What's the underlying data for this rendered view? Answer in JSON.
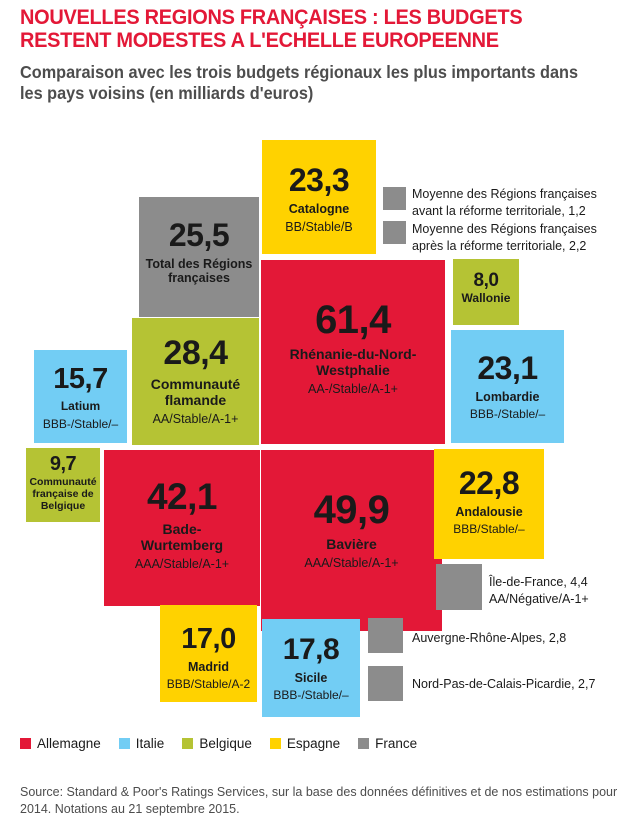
{
  "chart_data": {
    "type": "treemap",
    "title": "NOUVELLES REGIONS FRANÇAISES : LES BUDGETS RESTENT MODESTES A L'ECHELLE EUROPEENNE",
    "subtitle": "Comparaison avec les trois budgets régionaux les plus importants dans les pays voisins (en milliards d'euros)",
    "colors": {
      "Allemagne": "#e31837",
      "Italie": "#72cdf4",
      "Belgique": "#b5c334",
      "Espagne": "#ffd200",
      "France": "#8c8c8c"
    },
    "legend": [
      {
        "label": "Allemagne",
        "country": "Allemagne"
      },
      {
        "label": "Italie",
        "country": "Italie"
      },
      {
        "label": "Belgique",
        "country": "Belgique"
      },
      {
        "label": "Espagne",
        "country": "Espagne"
      },
      {
        "label": "France",
        "country": "France"
      }
    ],
    "regions": [
      {
        "value_label": "61,4",
        "value": 61.4,
        "name": "Rhénanie-du-Nord-\nWestphalie",
        "rating": "AA-/Stable/A-1+",
        "country": "Allemagne"
      },
      {
        "value_label": "49,9",
        "value": 49.9,
        "name": "Bavière",
        "rating": "AAA/Stable/A-1+",
        "country": "Allemagne"
      },
      {
        "value_label": "42,1",
        "value": 42.1,
        "name": "Bade-\nWurtemberg",
        "rating": "AAA/Stable/A-1+",
        "country": "Allemagne"
      },
      {
        "value_label": "28,4",
        "value": 28.4,
        "name": "Communauté\nflamande",
        "rating": "AA/Stable/A-1+",
        "country": "Belgique"
      },
      {
        "value_label": "25,5",
        "value": 25.5,
        "name": "Total des Régions\nfrançaises",
        "rating": "",
        "country": "France"
      },
      {
        "value_label": "23,3",
        "value": 23.3,
        "name": "Catalogne",
        "rating": "BB/Stable/B",
        "country": "Espagne"
      },
      {
        "value_label": "23,1",
        "value": 23.1,
        "name": "Lombardie",
        "rating": "BBB-/Stable/–",
        "country": "Italie"
      },
      {
        "value_label": "22,8",
        "value": 22.8,
        "name": "Andalousie",
        "rating": "BBB/Stable/–",
        "country": "Espagne"
      },
      {
        "value_label": "17,8",
        "value": 17.8,
        "name": "Sicile",
        "rating": "BBB-/Stable/–",
        "country": "Italie"
      },
      {
        "value_label": "17,0",
        "value": 17.0,
        "name": "Madrid",
        "rating": "BBB/Stable/A-2",
        "country": "Espagne"
      },
      {
        "value_label": "15,7",
        "value": 15.7,
        "name": "Latium",
        "rating": "BBB-/Stable/–",
        "country": "Italie"
      },
      {
        "value_label": "9,7",
        "value": 9.7,
        "name": "Communauté\nfrançaise de\nBelgique",
        "rating": "",
        "country": "Belgique"
      },
      {
        "value_label": "8,0",
        "value": 8.0,
        "name": "Wallonie",
        "rating": "",
        "country": "Belgique"
      }
    ],
    "small_regions": [
      {
        "label": "Moyenne des Régions françaises\navant la réforme territoriale, 1,2",
        "value": 1.2,
        "country": "France"
      },
      {
        "label": "Moyenne des Régions françaises\naprès la réforme territoriale, 2,2",
        "value": 2.2,
        "country": "France"
      },
      {
        "label": "Île-de-France, 4,4\nAA/Négative/A-1+",
        "value": 4.4,
        "country": "France"
      },
      {
        "label": "Auvergne-Rhône-Alpes, 2,8",
        "value": 2.8,
        "country": "France"
      },
      {
        "label": "Nord-Pas-de-Calais-Picardie, 2,7",
        "value": 2.7,
        "country": "France"
      }
    ],
    "source": "Source: Standard & Poor's Ratings Services, sur la base des données définitives et de nos estimations pour 2014. Notations au 21 septembre 2015."
  }
}
